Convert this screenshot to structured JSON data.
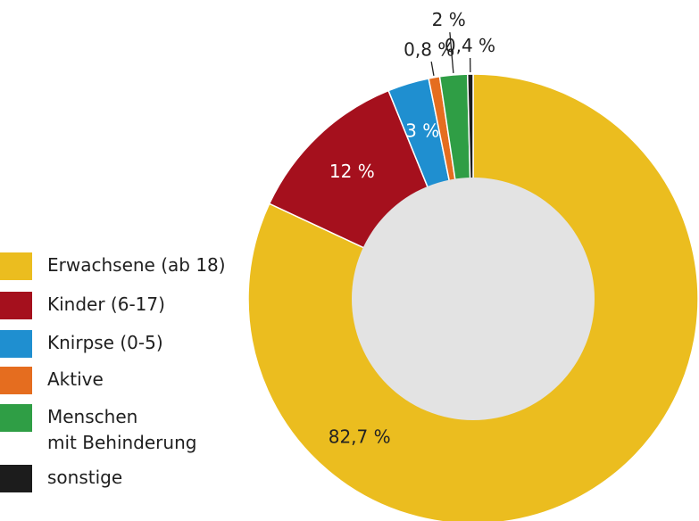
{
  "chart_data": {
    "type": "pie",
    "style": "donut",
    "start": "top, clockwise",
    "slices": [
      {
        "label": "Erwachsene (ab 18)",
        "value": 82.7,
        "display": "82,7 %",
        "color": "#ebbd1f",
        "label_color": "#222222"
      },
      {
        "label": "Kinder (6-17)",
        "value": 12,
        "display": "12 %",
        "color": "#a5101d",
        "label_color": "#ffffff"
      },
      {
        "label": "Knirpse (0-5)",
        "value": 3,
        "display": "3 %",
        "color": "#1f8fd0",
        "label_color": "#ffffff"
      },
      {
        "label": "Aktive",
        "value": 0.8,
        "display": "0,8 %",
        "color": "#e56d1f",
        "label_color": "#222222"
      },
      {
        "label": "Menschen\nmit Behinderung",
        "value": 2,
        "display": "2 %",
        "color": "#2f9e45",
        "label_color": "#222222"
      },
      {
        "label": "sonstige",
        "value": 0.4,
        "display": "0,4 %",
        "color": "#1c1c1c",
        "label_color": "#222222"
      }
    ],
    "center_color": "#e3e3e3",
    "legend_position": "left-bottom"
  }
}
